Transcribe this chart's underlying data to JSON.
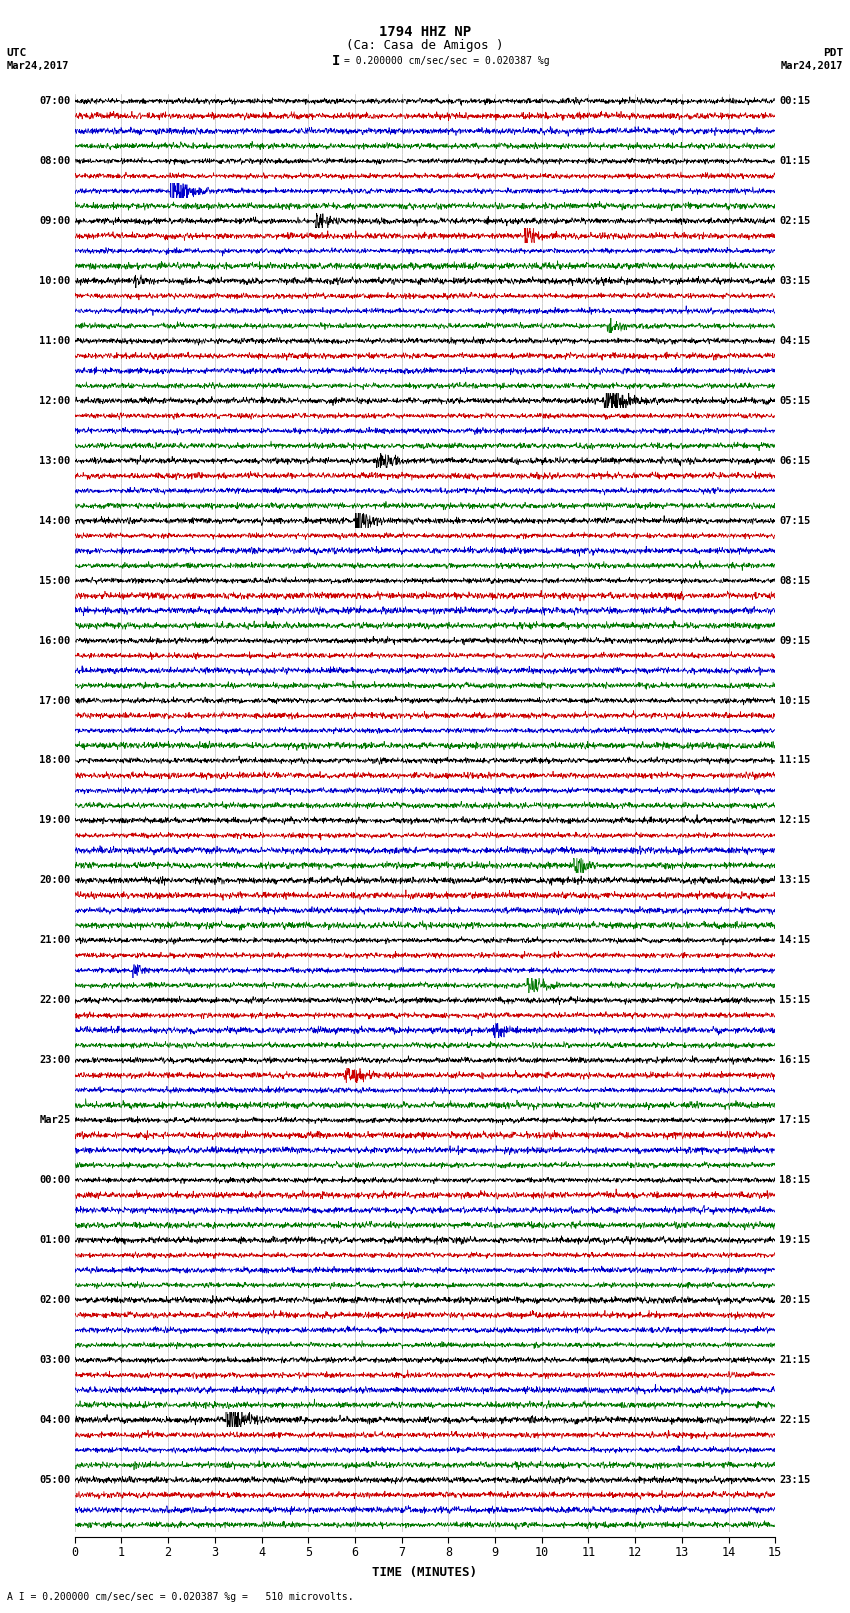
{
  "title_line1": "1794 HHZ NP",
  "title_line2": "(Ca: Casa de Amigos )",
  "scale_text": "= 0.200000 cm/sec/sec = 0.020387 %g",
  "footer_text": "A I = 0.200000 cm/sec/sec = 0.020387 %g =   510 microvolts.",
  "left_label_top": "UTC",
  "left_label_date": "Mar24,2017",
  "right_label_top": "PDT",
  "right_label_date": "Mar24,2017",
  "xlabel": "TIME (MINUTES)",
  "colors": [
    "#000000",
    "#cc0000",
    "#0000cc",
    "#007700"
  ],
  "background_color": "#ffffff",
  "num_rows": 24,
  "traces_per_row": 4,
  "left_times": [
    "07:00",
    "08:00",
    "09:00",
    "10:00",
    "11:00",
    "12:00",
    "13:00",
    "14:00",
    "15:00",
    "16:00",
    "17:00",
    "18:00",
    "19:00",
    "20:00",
    "21:00",
    "22:00",
    "23:00",
    "Mar25",
    "00:00",
    "01:00",
    "02:00",
    "03:00",
    "04:00",
    "05:00"
  ],
  "right_times": [
    "00:15",
    "01:15",
    "02:15",
    "03:15",
    "04:15",
    "05:15",
    "06:15",
    "07:15",
    "08:15",
    "09:15",
    "10:15",
    "11:15",
    "12:15",
    "13:15",
    "14:15",
    "15:15",
    "16:15",
    "17:15",
    "18:15",
    "19:15",
    "20:15",
    "21:15",
    "22:15",
    "23:15"
  ],
  "figsize": [
    8.5,
    16.13
  ],
  "dpi": 100
}
